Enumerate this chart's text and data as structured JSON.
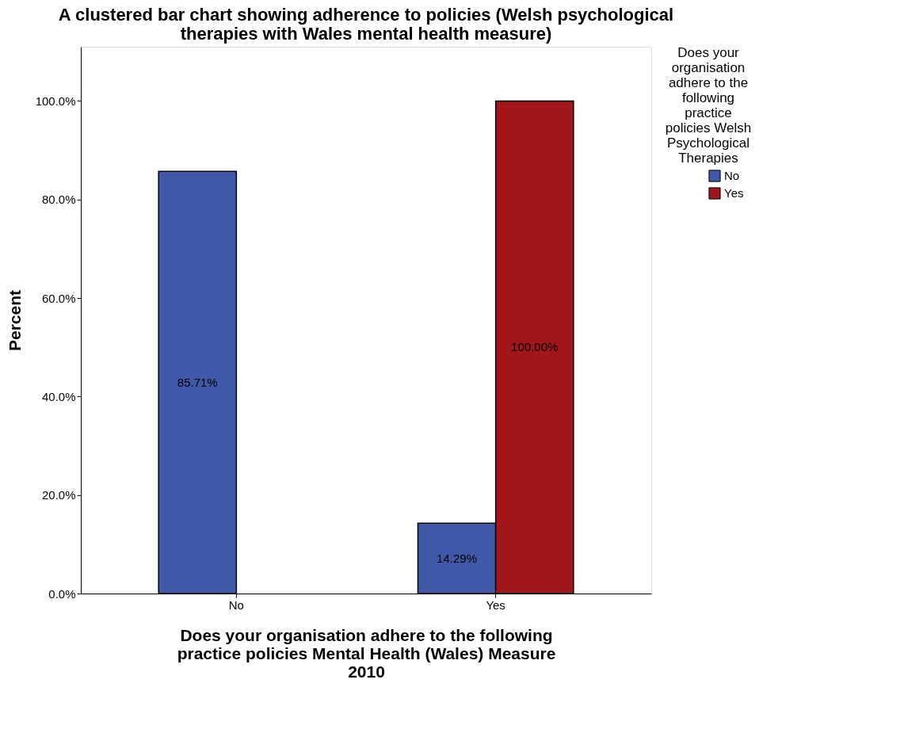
{
  "chart_data": {
    "type": "bar",
    "title": "A clustered bar chart showing adherence to policies (Welsh psychological therapies with Wales mental health measure)",
    "xlabel": "Does your organisation adhere to the following practice policies Mental Health (Wales) Measure 2010",
    "ylabel": "Percent",
    "legend_title": "Does your organisation adhere to the following practice policies Welsh Psychological Therapies",
    "categories": [
      "No",
      "Yes"
    ],
    "series": [
      {
        "name": "No",
        "color": "#3f58a8",
        "values": [
          85.71,
          14.29
        ],
        "value_labels": [
          "85.71%",
          "14.29%"
        ]
      },
      {
        "name": "Yes",
        "color": "#a0161a",
        "values": [
          null,
          100
        ],
        "value_labels": [
          null,
          "100.00%"
        ]
      }
    ],
    "ylim": [
      0,
      111
    ],
    "yticks": [
      {
        "value": 0,
        "label": "0.0%"
      },
      {
        "value": 20,
        "label": "20.0%"
      },
      {
        "value": 40,
        "label": "40.0%"
      },
      {
        "value": 60,
        "label": "60.0%"
      },
      {
        "value": 80,
        "label": "80.0%"
      },
      {
        "value": 100,
        "label": "100.0%"
      }
    ],
    "grid": false,
    "legend": "top right"
  }
}
